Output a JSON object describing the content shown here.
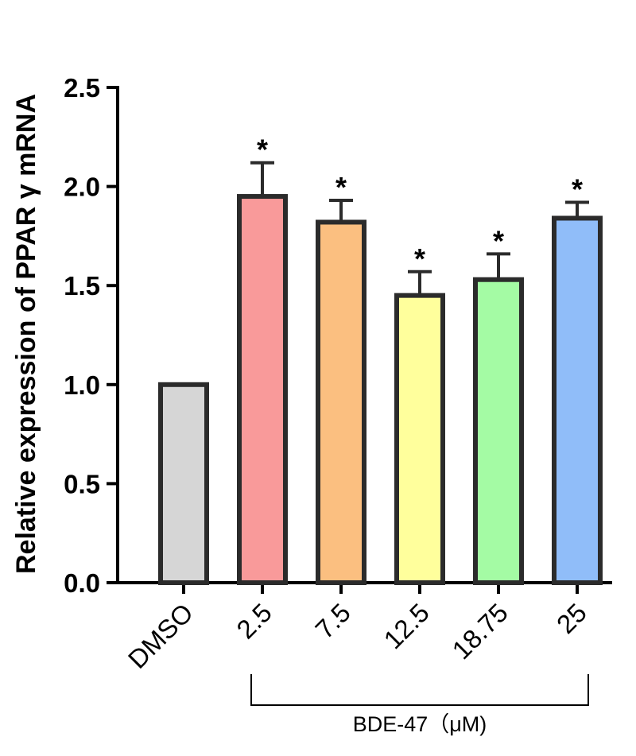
{
  "chart_data": {
    "type": "bar",
    "title": "",
    "xlabel": "",
    "ylabel": "Relative expression of PPAR γ mRNA",
    "ylim": [
      0,
      2.5
    ],
    "yticks": [
      "0.0",
      "0.5",
      "1.0",
      "1.5",
      "2.0",
      "2.5"
    ],
    "categories": [
      "DMSO",
      "2.5",
      "7.5",
      "12.5",
      "18.75",
      "25"
    ],
    "values": [
      1.0,
      1.95,
      1.82,
      1.45,
      1.53,
      1.84
    ],
    "errors": [
      0,
      0.17,
      0.11,
      0.12,
      0.13,
      0.08
    ],
    "significance": [
      "",
      "*",
      "*",
      "*",
      "*",
      "*"
    ],
    "colors": [
      "#d6d6d6",
      "#f99a9a",
      "#fbbf80",
      "#ffff9c",
      "#a4fba4",
      "#90bdf9"
    ],
    "group_bracket": {
      "label": "BDE-47（μM)",
      "from_category": "2.5",
      "to_category": "25"
    },
    "grid": false,
    "legend": "none"
  }
}
